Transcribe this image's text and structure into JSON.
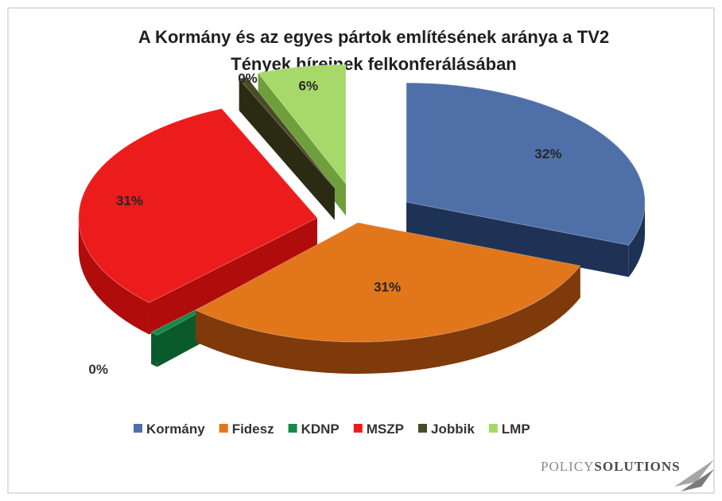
{
  "chart_data": {
    "type": "pie",
    "title_lines": [
      "A Kormány és az egyes pártok említésének aránya a TV2",
      "Tények híreinek felkonferálásában"
    ],
    "categories": [
      "Kormány",
      "Fidesz",
      "KDNP",
      "MSZP",
      "Jobbik",
      "LMP"
    ],
    "values": [
      32,
      31,
      0,
      31,
      0,
      6
    ],
    "data_labels": [
      "32%",
      "31%",
      "0%",
      "31%",
      "0%",
      "6%"
    ],
    "colors": [
      "#4f6fa8",
      "#e2761b",
      "#16894a",
      "#ec1c1c",
      "#4a4a28",
      "#a6d96a"
    ],
    "side_colors": [
      "#1e3256",
      "#7e3a0b",
      "#0a5a2c",
      "#b00c0c",
      "#2b2b14",
      "#6f9f3c"
    ],
    "legend_position": "bottom",
    "style": "3d exploded pie"
  },
  "logo": {
    "part1": "POLICY",
    "part2": "SOLUTIONS"
  }
}
